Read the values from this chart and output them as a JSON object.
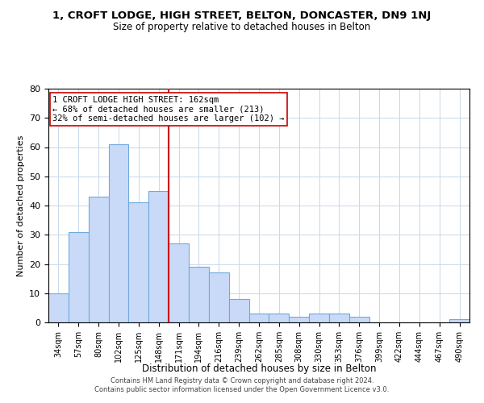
{
  "title_line1": "1, CROFT LODGE, HIGH STREET, BELTON, DONCASTER, DN9 1NJ",
  "title_line2": "Size of property relative to detached houses in Belton",
  "xlabel": "Distribution of detached houses by size in Belton",
  "ylabel": "Number of detached properties",
  "bar_labels": [
    "34sqm",
    "57sqm",
    "80sqm",
    "102sqm",
    "125sqm",
    "148sqm",
    "171sqm",
    "194sqm",
    "216sqm",
    "239sqm",
    "262sqm",
    "285sqm",
    "308sqm",
    "330sqm",
    "353sqm",
    "376sqm",
    "399sqm",
    "422sqm",
    "444sqm",
    "467sqm",
    "490sqm"
  ],
  "bar_values": [
    10,
    31,
    43,
    61,
    41,
    45,
    27,
    19,
    17,
    8,
    3,
    3,
    2,
    3,
    3,
    2,
    0,
    0,
    0,
    0,
    1
  ],
  "bar_color": "#c9daf8",
  "bar_edge_color": "#6fa8dc",
  "grid_color": "#c8d8e8",
  "background_color": "#ffffff",
  "vline_x": 6,
  "vline_color": "#cc0000",
  "annotation_text": "1 CROFT LODGE HIGH STREET: 162sqm\n← 68% of detached houses are smaller (213)\n32% of semi-detached houses are larger (102) →",
  "annotation_box_color": "#ffffff",
  "annotation_box_edge": "#cc0000",
  "ylim": [
    0,
    80
  ],
  "yticks": [
    0,
    10,
    20,
    30,
    40,
    50,
    60,
    70,
    80
  ],
  "footer_line1": "Contains HM Land Registry data © Crown copyright and database right 2024.",
  "footer_line2": "Contains public sector information licensed under the Open Government Licence v3.0."
}
